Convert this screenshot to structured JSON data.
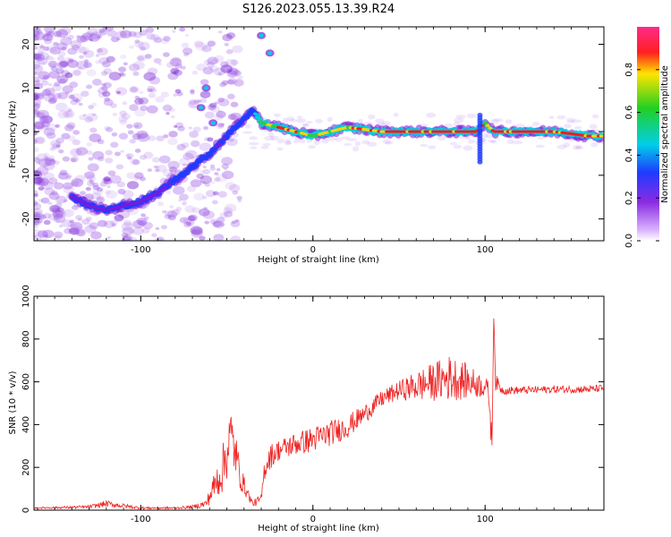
{
  "title": "S126.2023.055.13.39.R24",
  "colors": {
    "spectral_ridge": [
      "#ff1a1a",
      "#ffd400",
      "#33cc33",
      "#00d0e0",
      "#1e3cff",
      "#7a1ad9"
    ],
    "snr_line": "#ee2222",
    "noise_purple": "#a060e8"
  },
  "chart_data": [
    {
      "type": "heatmap",
      "title": "S126.2023.055.13.39.R24",
      "xlabel": "Height of straight line (km)",
      "ylabel": "Frequency (Hz)",
      "xlim": [
        -162,
        169
      ],
      "ylim": [
        -25,
        24
      ],
      "xticks": [
        -100,
        0,
        100
      ],
      "yticks": [
        -20,
        -10,
        0,
        10,
        20
      ],
      "colorbar": {
        "label": "Normalized spectral amplitude",
        "range": [
          0,
          1
        ],
        "ticks": [
          0.0,
          0.2,
          0.4,
          0.6,
          0.8
        ]
      },
      "ridge": {
        "x": [
          -140,
          -130,
          -120,
          -110,
          -100,
          -90,
          -80,
          -70,
          -60,
          -55,
          -50,
          -45,
          -40,
          -35,
          -30,
          -20,
          -10,
          0,
          10,
          20,
          40,
          60,
          80,
          95,
          100,
          105,
          120,
          140,
          160,
          168
        ],
        "y": [
          -15,
          -17,
          -18,
          -17,
          -16,
          -14,
          -11,
          -8,
          -5,
          -3,
          -1,
          1,
          3,
          5,
          2,
          1,
          0,
          -1,
          0,
          1,
          0,
          0,
          0,
          0,
          2,
          0,
          0,
          0,
          -1,
          -1
        ],
        "amplitude": [
          0.15,
          0.2,
          0.25,
          0.2,
          0.15,
          0.2,
          0.3,
          0.35,
          0.3,
          0.25,
          0.3,
          0.35,
          0.3,
          0.35,
          0.6,
          0.85,
          0.8,
          0.65,
          0.75,
          0.8,
          0.85,
          0.85,
          0.9,
          0.95,
          0.8,
          0.9,
          0.95,
          0.9,
          0.85,
          0.8
        ]
      }
    },
    {
      "type": "line",
      "xlabel": "Height of straight line (km)",
      "ylabel": "SNR (10 * v/v)",
      "xlim": [
        -162,
        169
      ],
      "ylim": [
        0,
        1000
      ],
      "xticks": [
        -100,
        0,
        100
      ],
      "yticks": [
        0,
        200,
        400,
        600,
        800,
        1000
      ],
      "series": [
        {
          "x": [
            -162,
            -130,
            -120,
            -100,
            -80,
            -70,
            -62,
            -58,
            -52,
            -48,
            -45,
            -42,
            -38,
            -35,
            -30,
            -28,
            -25,
            -20,
            -10,
            0,
            10,
            20,
            30,
            40,
            50,
            60,
            70,
            80,
            90,
            100,
            102,
            104,
            105,
            106,
            110,
            120,
            140,
            160,
            169
          ],
          "values": [
            10,
            15,
            30,
            10,
            10,
            15,
            30,
            100,
            200,
            350,
            270,
            150,
            80,
            30,
            50,
            200,
            250,
            280,
            310,
            330,
            360,
            390,
            450,
            520,
            560,
            580,
            600,
            620,
            600,
            580,
            560,
            300,
            950,
            600,
            560,
            560,
            565,
            565,
            570
          ],
          "noise": [
            3,
            8,
            15,
            6,
            5,
            8,
            20,
            60,
            120,
            150,
            110,
            60,
            30,
            15,
            25,
            60,
            60,
            50,
            55,
            60,
            60,
            55,
            45,
            40,
            45,
            70,
            90,
            110,
            80,
            50,
            40,
            80,
            40,
            40,
            20,
            18,
            18,
            18,
            18
          ]
        }
      ]
    }
  ]
}
